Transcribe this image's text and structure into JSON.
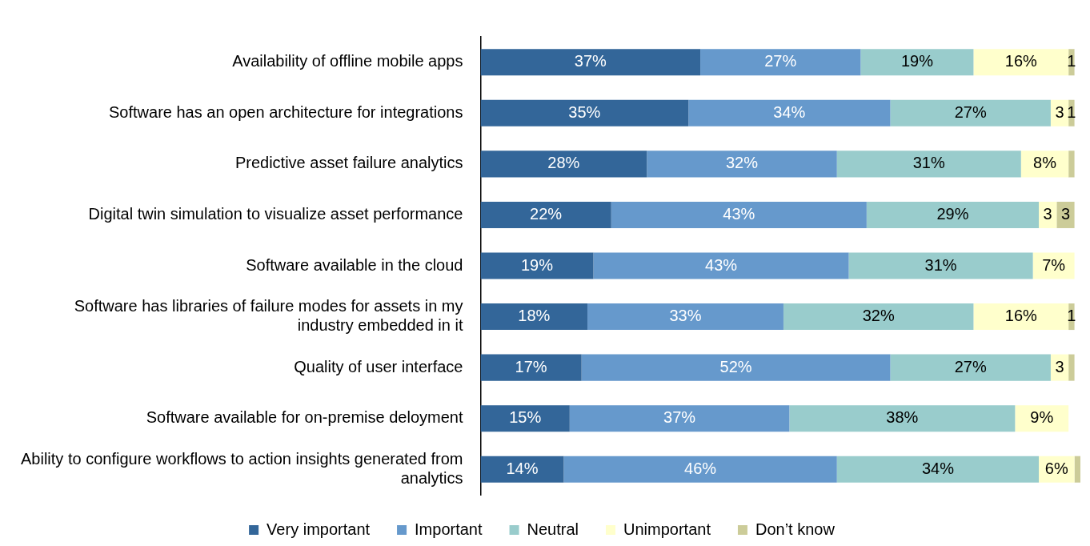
{
  "chart_data": {
    "type": "bar",
    "orientation": "horizontal",
    "stacked": true,
    "legend": "bottom",
    "grid": false,
    "tick_labels": "y",
    "categories": [
      "Availability of offline mobile apps",
      "Software has an open architecture for integrations",
      "Predictive asset failure analytics",
      "Digital twin simulation to visualize asset performance",
      "Software available in the cloud",
      "Software has libraries of failure modes for assets in my industry embedded in it",
      "Quality of user interface",
      "Software available for on-premise deloyment",
      "Ability to configure workflows to action insights generated from analytics"
    ],
    "series": [
      {
        "name": "Very important",
        "color": "#336699",
        "values": [
          37,
          35,
          28,
          22,
          19,
          18,
          17,
          15,
          14
        ],
        "value_labels": [
          "37%",
          "35%",
          "28%",
          "22%",
          "19%",
          "18%",
          "17%",
          "15%",
          "14%"
        ]
      },
      {
        "name": "Important",
        "color": "#6699cc",
        "values": [
          27,
          34,
          32,
          43,
          43,
          33,
          52,
          37,
          46
        ],
        "value_labels": [
          "27%",
          "34%",
          "32%",
          "43%",
          "43%",
          "33%",
          "52%",
          "37%",
          "46%"
        ]
      },
      {
        "name": "Neutral",
        "color": "#99cccc",
        "values": [
          19,
          27,
          31,
          29,
          31,
          32,
          27,
          38,
          34
        ],
        "value_labels": [
          "19%",
          "27%",
          "31%",
          "29%",
          "31%",
          "32%",
          "27%",
          "38%",
          "34%"
        ]
      },
      {
        "name": "Unimportant",
        "color": "#ffffcc",
        "values": [
          16,
          3,
          8,
          3,
          7,
          16,
          3,
          9,
          6
        ],
        "value_labels": [
          "16%",
          "3",
          "8%",
          "3",
          "7%",
          "16%",
          "3",
          "9%",
          "6%"
        ]
      },
      {
        "name": "Don’t know",
        "color": "#cccc99",
        "values": [
          1,
          1,
          1,
          3,
          null,
          1,
          1,
          null,
          1
        ],
        "value_labels": [
          "1",
          "1",
          null,
          "3",
          null,
          "1",
          null,
          null,
          null
        ]
      }
    ]
  }
}
